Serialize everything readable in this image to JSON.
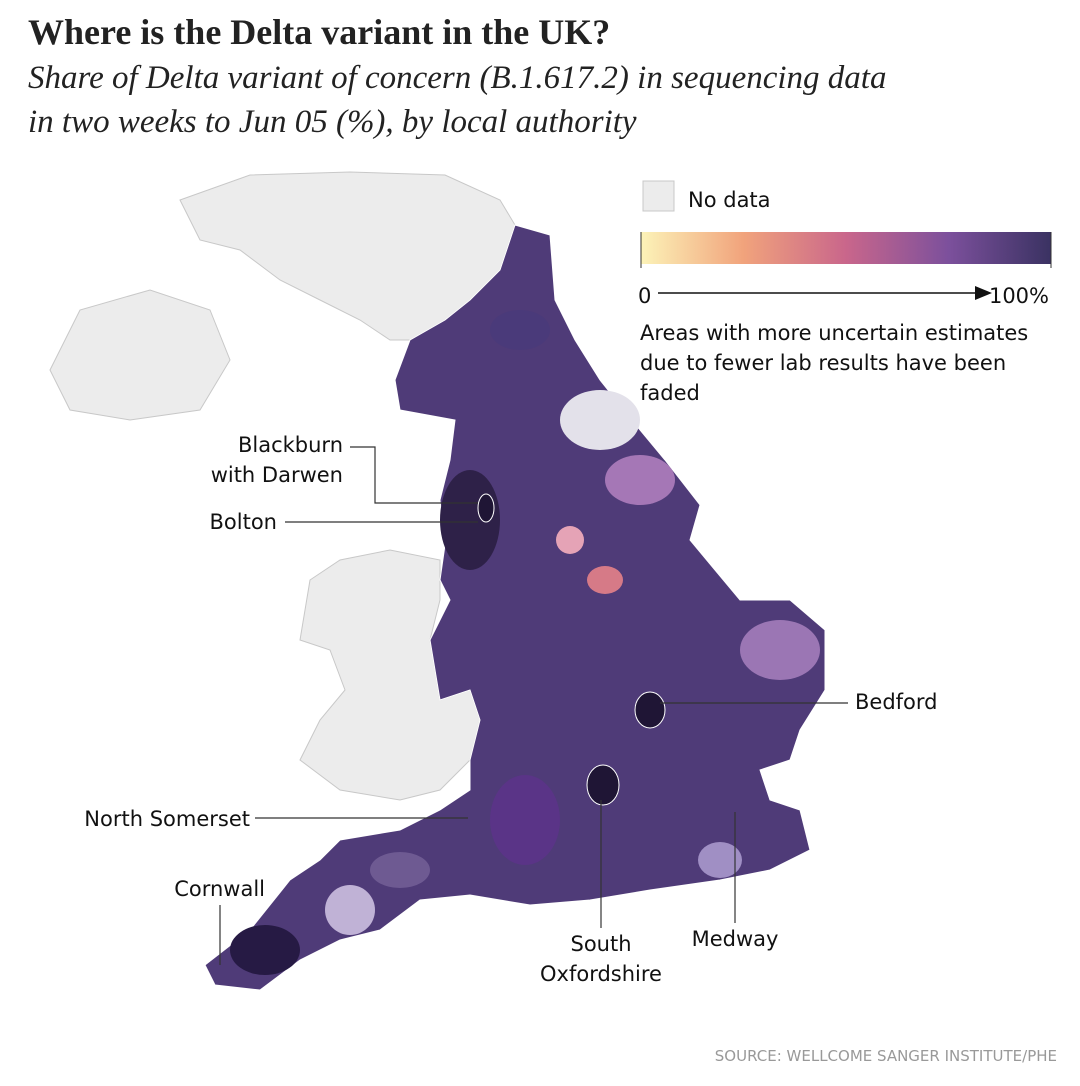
{
  "header": {
    "title": "Where is the Delta variant in the UK?",
    "subtitle_lines": [
      "Share of Delta variant of concern (B.1.617.2) in sequencing data",
      "in two weeks to Jun 05 (%), by local authority"
    ]
  },
  "legend": {
    "no_data": "No data",
    "scale_min": "0",
    "scale_max": "100%",
    "note_lines": [
      "Areas with more uncertain estimates",
      "due to fewer lab results have been",
      "faded"
    ]
  },
  "annotations": [
    {
      "lines": [
        "Blackburn",
        "with Darwen"
      ]
    },
    {
      "lines": [
        "Bolton"
      ]
    },
    {
      "lines": [
        "Bedford"
      ]
    },
    {
      "lines": [
        "North Somerset"
      ]
    },
    {
      "lines": [
        "Cornwall"
      ]
    },
    {
      "lines": [
        "South",
        "Oxfordshire"
      ]
    },
    {
      "lines": [
        "Medway"
      ]
    }
  ],
  "source": "SOURCE: WELLCOME SANGER INSTITUTE/PHE"
}
